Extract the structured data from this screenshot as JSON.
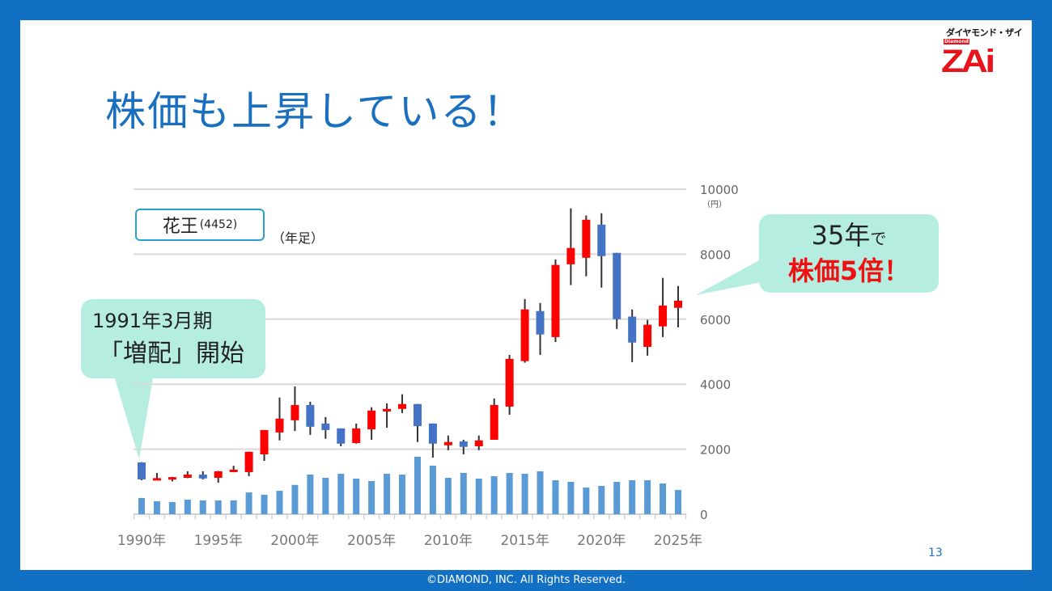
{
  "slide": {
    "title": "株価も上昇している！",
    "page_number": "13",
    "footer": "©DIAMOND, INC. All Rights Reserved.",
    "logo": {
      "kana": "ダイヤモンド・ザイ",
      "sub": "Diamond",
      "main": "ZAi"
    }
  },
  "stock": {
    "name": "花王",
    "code": "(4452)",
    "period": "（年足）"
  },
  "callout_left": {
    "line1": "1991年3月期",
    "line2": "「増配」開始"
  },
  "callout_right": {
    "line1_main": "35年",
    "line1_suffix": "で",
    "line2": "株価5倍！"
  },
  "colors": {
    "up": "#ff0000",
    "down": "#4472c4",
    "volume": "#5b9bd5",
    "grid": "#d9d9d9",
    "callout": "#b5ede0",
    "title": "#1b6fbf"
  },
  "chart_data": {
    "type": "candlestick",
    "ylim": [
      0,
      10000
    ],
    "yticks": [
      "0",
      "2000",
      "4000",
      "6000",
      "8000",
      "10000"
    ],
    "yunit": "（円）",
    "xtick_labels": [
      "1990年",
      "1995年",
      "2000年",
      "2005年",
      "2010年",
      "2015年",
      "2020年",
      "2025年"
    ],
    "grid": true,
    "years": [
      1990,
      1991,
      1992,
      1993,
      1994,
      1995,
      1996,
      1997,
      1998,
      1999,
      2000,
      2001,
      2002,
      2003,
      2004,
      2005,
      2006,
      2007,
      2008,
      2009,
      2010,
      2011,
      2012,
      2013,
      2014,
      2015,
      2016,
      2017,
      2018,
      2019,
      2020,
      2021,
      2022,
      2023,
      2024,
      2025
    ],
    "ohlc": [
      [
        1594,
        1600,
        1045,
        1071
      ],
      [
        1080,
        1270,
        1045,
        1110
      ],
      [
        1070,
        1150,
        1010,
        1140
      ],
      [
        1120,
        1320,
        1110,
        1220
      ],
      [
        1220,
        1320,
        1070,
        1100
      ],
      [
        1120,
        1330,
        970,
        1320
      ],
      [
        1295,
        1490,
        1290,
        1370
      ],
      [
        1295,
        1920,
        1170,
        1920
      ],
      [
        1840,
        2590,
        1640,
        2590
      ],
      [
        2515,
        3590,
        2270,
        2940
      ],
      [
        2890,
        3930,
        2560,
        3360
      ],
      [
        3360,
        3460,
        2440,
        2690
      ],
      [
        2790,
        2990,
        2320,
        2590
      ],
      [
        2640,
        2640,
        2090,
        2170
      ],
      [
        2190,
        2790,
        2170,
        2640
      ],
      [
        2610,
        3290,
        2290,
        3190
      ],
      [
        3160,
        3410,
        2660,
        3240
      ],
      [
        3240,
        3690,
        3110,
        3390
      ],
      [
        3390,
        3390,
        2220,
        2710
      ],
      [
        2790,
        2790,
        1740,
        2170
      ],
      [
        2120,
        2420,
        1970,
        2220
      ],
      [
        2240,
        2290,
        1840,
        2070
      ],
      [
        2090,
        2420,
        1970,
        2270
      ],
      [
        2290,
        3560,
        2290,
        3360
      ],
      [
        3310,
        4900,
        3060,
        4780
      ],
      [
        4710,
        6620,
        4660,
        6300
      ],
      [
        6250,
        6500,
        4900,
        5530
      ],
      [
        5450,
        7840,
        5300,
        7670
      ],
      [
        7690,
        9410,
        7050,
        8190
      ],
      [
        7890,
        9190,
        7320,
        9060
      ],
      [
        8910,
        9260,
        6970,
        7940
      ],
      [
        8040,
        8040,
        5700,
        6000
      ],
      [
        6080,
        6300,
        4680,
        5280
      ],
      [
        5150,
        5980,
        4880,
        5830
      ],
      [
        5780,
        7270,
        5450,
        6420
      ],
      [
        6350,
        7020,
        5750,
        6570
      ]
    ],
    "volume": [
      500,
      400,
      375,
      450,
      425,
      425,
      425,
      670,
      600,
      720,
      900,
      1220,
      1120,
      1245,
      1095,
      1020,
      1245,
      1220,
      1770,
      1495,
      1120,
      1270,
      1095,
      1170,
      1270,
      1245,
      1320,
      1045,
      995,
      820,
      870,
      995,
      1045,
      1045,
      945,
      745
    ]
  }
}
